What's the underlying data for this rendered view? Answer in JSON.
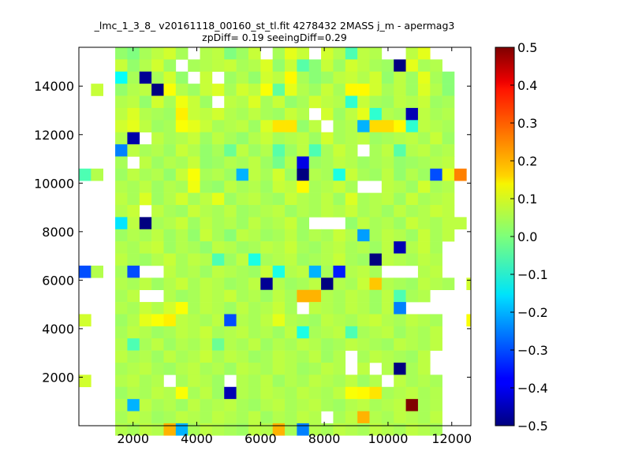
{
  "chart_data": {
    "type": "heatmap",
    "title": "_lmc_1_3_8_ v20161118_00160_st_tl.fit 4278432 2MASS j_m - apermag3",
    "subtitle": "zpDiff= 0.19 seeingDiff=0.29",
    "xlim": [
      300,
      12600
    ],
    "ylim": [
      0,
      15600
    ],
    "xticks": [
      2000,
      4000,
      6000,
      8000,
      10000,
      12000
    ],
    "xtick_labels": [
      "2000",
      "4000",
      "6000",
      "8000",
      "10000",
      "12000"
    ],
    "yticks": [
      2000,
      4000,
      6000,
      8000,
      10000,
      12000,
      14000
    ],
    "ytick_labels": [
      "2000",
      "4000",
      "6000",
      "8000",
      "10000",
      "12000",
      "14000"
    ],
    "colorbar": {
      "colormap": "jet",
      "vmin": -0.5,
      "vmax": 0.5,
      "ticks": [
        0.5,
        0.4,
        0.3,
        0.2,
        0.1,
        0.0,
        -0.1,
        -0.2,
        -0.3,
        -0.4,
        -0.5
      ],
      "tick_labels": [
        "0.5",
        "0.4",
        "0.3",
        "0.2",
        "0.1",
        "0.0",
        "−0.1",
        "−0.2",
        "−0.3",
        "−0.4",
        "−0.5"
      ]
    },
    "grid": {
      "x0": 300,
      "dx": 380,
      "y_top": 15600,
      "dy": 500,
      "null": "n",
      "rows": [
        "n n n 0.02 0 0.04 0.06 0.08 0.04 n 0.05 0.06 0 0.03 0.07 n 0.04 0.1 0.07 n 0.08 0.05 -0.05 0.06 0.05 n n 0.06 0.1 n n n",
        "n n n 0.07 0.02 0.05 0.08 0.03 n 0.04 0.05 0.06 0.07 0.04 0.05 0.09 0.02 0.07 -0.04 0.01 0.07 0.03 0.08 0.06 0.04 0.03 -0.5 0.1 0.04 0.05 n n n",
        "n n n -0.12 0.04 -0.48 0.04 0.08 0.02 n 0.07 n 0.03 0.05 0.02 0.08 0.06 0.13 0.04 0.01 0.03 0.06 0.07 0.05 0.08 0.02 0.06 0.03 0.1 0.04 0.01 n n",
        "n 0.07 n 0.02 0.05 0.06 -0.5 0.12 0.05 0.03 0.07 0.09 0.04 0.08 0.06 0.12 -0.03 0.1 0.05 0.03 0.07 0.04 0.13 0.13 0.08 0.04 0.06 0.03 0.09 0.05 0.01 n n",
        "n n n 0.05 0.06 0.02 0.08 0.04 0.11 0.07 0.03 n 0.06 0.05 0.09 0.04 0.07 0.02 0.04 0.08 0.06 0.05 -0.08 0.07 0.04 0.03 0.06 0.05 0.07 0.03 0.04 n n",
        "n n n 0.06 0.09 0.05 0.04 0.03 0.14 0.07 0.06 0.08 0.05 0.04 0.06 0.04 0.03 0.07 0.05 n 0.08 0.03 0.06 0.1 -0.08 0.05 0.04 -0.45 0.06 0.04 0.05 n n",
        "n n n 0.08 0.1 0.06 0.03 0.04 0.12 0.1 0.07 0.04 0.05 0.06 0.03 0.09 0.15 0.15 0.02 0.06 n 0.04 0.05 -0.2 0.16 0.16 0.13 -0.08 0.06 0.05 0.04 n n",
        "n n n 0.05 -0.46 n 0.06 0.04 0.05 0.07 0.03 0.06 0.04 0.02 0.05 0.07 0.04 0.05 0.06 0.03 0.08 0.04 0.05 0.06 0.03 0.04 0.05 0.06 0.04 0.07 0.03 n n",
        "n n n -0.25 0.06 0.04 0.05 0.03 0.07 0.05 0.02 0.04 -0.02 0.06 0.03 0.05 -0.04 0.03 0.06 -0.05 0.04 0.07 0.05 n 0.04 0.06 -0.04 0.05 0.06 0.04 0.05 n n",
        "n n n 0.04 n 0.06 0.03 0.05 0.04 0.07 0.02 0.03 0.05 0.04 0.06 0.03 -0.01 0.05 -0.4 0.03 0.04 0.06 0.05 0.03 0.04 0.05 0.02 0.03 0.04 0.05 0.06 n n",
        "-0.05 0.05 n 0.03 0.06 0.04 0.05 0.02 0.07 0.12 0.04 0.05 0.03 -0.2 0.06 0.04 0.08 0.03 -0.5 0.05 0.04 -0.1 0.07 0.04 0.03 0.06 0.02 0.05 0.03 -0.3 0.1 0.25 n",
        "n n n 0.05 0.04 0.06 0.03 0.05 0.04 0.11 0.03 0.02 0.06 0.04 0.05 0.03 0.07 0.06 0.13 0.04 0.05 0.07 0.04 n n 0.06 0.05 0.03 0.08 0.04 0.05 n n",
        "n n n 0.06 0.04 0.09 0.03 0.05 0.08 0.04 0.06 0.1 0.03 0.05 0.06 0.04 0.03 0.07 0.05 0.04 0.06 0.03 0.09 0.04 0.05 0.06 0.03 0.07 0.04 0.05 0.06 n n",
        "n n n 0.05 0.07 n 0.06 0.04 0.03 0.07 0.05 0.04 0.06 0.03 0.04 0.05 0.06 0.03 0.05 0.04 0.06 0.05 0.07 0.04 0.05 0.03 0.06 0.04 0.05 0.07 0.06 n n",
        "n n n -0.15 0.06 -0.5 0.04 0.05 0.07 0.03 0.06 0.04 0.05 0.03 0.06 0.04 0.05 0.07 0.03 n n n 0.02 0.06 0.04 0.05 0.03 0.07 0.05 0.04 0.06 0.06 n",
        "n n n 0.03 0.05 0.04 0.06 0.03 0.05 0.02 0.07 0.04 0.01 0.06 0.05 0.03 0.04 0.06 0.03 0.05 0.04 0.07 0.05 -0.22 0.04 0.06 0.05 0.03 0.07 0.04 0.06 n n",
        "n n n 0.05 0.04 0.06 0.07 0.03 0.05 0.04 0.02 0.06 0.05 0.03 0.04 0.06 0.05 0.07 0.04 0.03 0.05 0.06 0.04 0.05 0.03 0.06 -0.45 0.05 0.07 0.04 n n n",
        "n n n 0.06 0.04 0.03 0.05 0.07 0.04 0.06 0.05 -0.05 0.03 0.06 -0.1 0.04 0.05 0.06 0.03 0.04 0.05 0.07 0.04 0.03 -0.5 0.06 0.05 0.04 0.06 0.05 n n n",
        "-0.3 0.05 n 0.04 -0.3 n n 0.06 0.04 0.05 0.03 0.06 0.05 0.04 0.03 0.07 -0.1 0.05 0.06 -0.2 0.04 -0.35 0.05 0.06 0.04 n n n 0.05 0.06 n n n",
        "n n n 0.05 0.04 0.06 0.03 0.05 0.07 0.04 0.06 0.05 0.03 0.04 0.06 -0.48 0.05 0.03 0.04 0.06 -0.5 0.05 0.04 0.07 0.18 0.05 0.04 0.03 0.06 0.05 0.04 n 0.08",
        "n n n 0.04 0.06 n n 0.05 0.03 0.04 0.06 0.05 0.07 0.04 0.05 0.03 0.06 0.04 0.2 0.2 0.05 0.04 0.06 0.05 0.03 0.06 -0.05 0.04 0.05 n n n n",
        "n n n 0.05 0.04 0.07 0.05 0.08 0.12 0.04 0.06 0.05 0.03 0.06 0.04 0.05 0.07 0.04 n 0.06 0.05 0.04 0.06 0.05 0.03 0.06 -0.25 n n n n n n",
        "0.08 n n 0.03 0.05 0.1 0.12 0.14 0.06 0.05 0.04 0.06 -0.3 0.05 0.04 0.06 0.1 0.05 0.04 0.03 0.06 0.05 0.04 0.06 0.07 0.05 0.04 0.06 0.05 0.04 n n 0.12",
        "n n n 0.04 0.06 0.05 0.03 0.04 0.06 0.05 0.07 0.04 0.05 0.06 0.04 0.05 0.03 0.06 -0.1 0.04 0.05 0.06 -0.05 0.04 0.05 0.06 0.03 0.05 0.04 0.06 n n n",
        "n n n 0.05 -0.05 0.04 0.06 0.03 0.05 0.04 0.06 -0.02 0.05 0.04 0.06 0.03 0.05 0.04 0.06 0.05 0.03 0.04 0.06 0.05 0.04 0.03 0.06 0.05 0.04 0.06 n n n",
        "n n n 0.06 0.04 0.05 0.03 0.06 0.04 0.05 0.07 0.04 0.06 0.05 0.03 0.04 0.06 0.05 0.04 0.06 0.03 0.05 n 0.04 0.06 0.05 0.04 0.03 0.06 n n n n",
        "n n n 0.04 0.05 0.06 0.04 0.03 0.05 0.06 0.04 0.05 0.03 0.06 0.05 0.04 0.06 0.05 0.03 0.04 0.06 0.05 n 0.06 n 0.05 -0.5 0.04 0.06 n n n n",
        "0.08 n n 0.05 0.06 0.04 0.05 n 0.04 0.06 0.05 0.03 n 0.05 0.04 0.06 0.03 0.05 0.04 0.06 0.05 0.04 0.06 0.03 0.05 n 0.06 0.04 0.05 0.04 n n n",
        "n n n 0.03 0.05 0.04 0.06 0.05 0.12 0.04 0.06 0.03 -0.45 0.05 0.04 0.06 0.05 0.04 0.06 0.05 0.04 0.06 0.12 0.13 0.15 0.04 0.05 0.06 0.04 0.05 n n n",
        "n n n 0.05 -0.2 0.06 0.04 0.05 0.03 0.06 0.04 0.05 0.06 0.04 0.03 0.05 0.06 0.04 0.05 0.06 0.04 0.03 0.05 0.06 0.04 0.05 0.06 0.5 0.04 0.05 n n n",
        "n n n 0.04 0.06 0.05 0.03 0.04 0.06 0.05 0.04 0.06 0.05 0.04 0.06 0.03 0.05 0.04 0.06 0.05 n 0.04 0.06 0.2 0.05 0.04 0.06 0.05 0.04 0.06 n n n",
        "n n n 0.05 0.04 0.06 0.05 0.2 -0.2 0.04 0.06 0.05 0.04 0.03 0.06 0.05 0.2 0.04 -0.25 0.05 0.04 0.06 0.05 0.04 0.06 0.05 0.04 0.06 0.05 0.04 n n n"
      ]
    }
  }
}
